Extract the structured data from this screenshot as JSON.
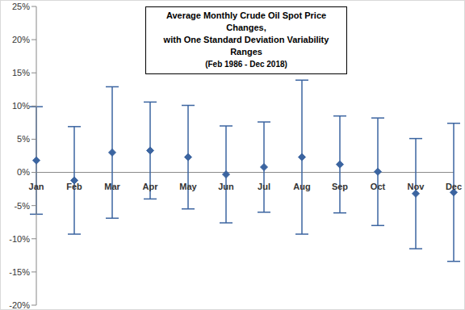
{
  "chart_data": {
    "type": "scatter",
    "title": "Average Monthly Crude Oil Spot Price Changes, with One Standard Deviation Variability Ranges",
    "subtitle": "(Feb 1986 - Dec 2018)",
    "categories": [
      "Jan",
      "Feb",
      "Mar",
      "Apr",
      "May",
      "Jun",
      "Jul",
      "Aug",
      "Sep",
      "Oct",
      "Nov",
      "Dec"
    ],
    "values": [
      1.8,
      -1.2,
      3.0,
      3.3,
      2.3,
      -0.3,
      0.8,
      2.3,
      1.2,
      0.1,
      -3.2,
      -3.0
    ],
    "error": [
      8.1,
      8.1,
      9.9,
      7.3,
      7.8,
      7.3,
      6.8,
      11.6,
      7.3,
      8.1,
      8.3,
      10.4
    ],
    "color": "#3b64a0",
    "marker": "diamond",
    "ylim": [
      -20,
      25
    ],
    "yticks": [
      {
        "value": -20,
        "label": "-20%"
      },
      {
        "value": -15,
        "label": "-15%"
      },
      {
        "value": -10,
        "label": "-10%"
      },
      {
        "value": -5,
        "label": "-5%"
      },
      {
        "value": 0,
        "label": "0%"
      },
      {
        "value": 5,
        "label": "5%"
      },
      {
        "value": 10,
        "label": "10%"
      },
      {
        "value": 15,
        "label": "15%"
      },
      {
        "value": 20,
        "label": "20%"
      },
      {
        "value": 25,
        "label": "25%"
      }
    ],
    "grid": false
  }
}
